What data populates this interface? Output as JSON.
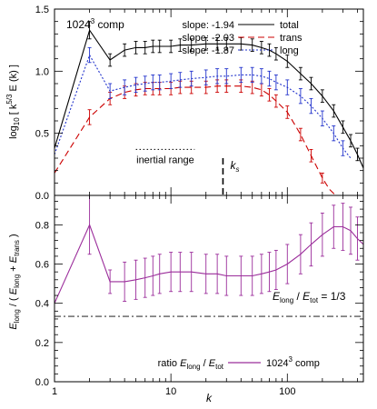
{
  "chart_data": [
    {
      "type": "line",
      "panel": "top",
      "x_scale": "log",
      "xlim": [
        1,
        450
      ],
      "ylim": [
        0.0,
        1.5
      ],
      "ylabel": "log10 [ k^5/3 E(k) ]",
      "yticks": [
        0.0,
        0.5,
        1.0,
        1.5
      ],
      "ytick_labels": [
        "0.0",
        "0.5",
        "1.0",
        "1.5"
      ],
      "grid": false,
      "legend_position": "top-right",
      "annotations": {
        "title_text": "1024",
        "title_sup": "3",
        "title_suffix": " comp",
        "inertial_range_label": "inertial range",
        "inertial_range_x": [
          5,
          16
        ],
        "inertial_range_y": 0.37,
        "ks_label": "k",
        "ks_sub": "s",
        "ks_x": 28,
        "ks_y_range": [
          0.0,
          0.3
        ]
      },
      "series": [
        {
          "name": "total",
          "slope_label": "slope: -1.94",
          "color": "#000000",
          "dash": "solid",
          "x": [
            1,
            2,
            3,
            4,
            5,
            6,
            7,
            8,
            10,
            12,
            15,
            20,
            25,
            30,
            40,
            50,
            60,
            70,
            80,
            100,
            130,
            160,
            200,
            250,
            300,
            350,
            400,
            450
          ],
          "y": [
            0.38,
            1.33,
            1.09,
            1.17,
            1.19,
            1.19,
            1.2,
            1.2,
            1.2,
            1.21,
            1.21,
            1.22,
            1.22,
            1.22,
            1.22,
            1.21,
            1.19,
            1.17,
            1.14,
            1.08,
            0.98,
            0.9,
            0.8,
            0.68,
            0.55,
            0.44,
            0.33,
            0.22
          ],
          "err": [
            0.0,
            0.07,
            0.05,
            0.05,
            0.05,
            0.05,
            0.05,
            0.05,
            0.05,
            0.05,
            0.05,
            0.05,
            0.05,
            0.05,
            0.05,
            0.05,
            0.05,
            0.05,
            0.05,
            0.05,
            0.05,
            0.05,
            0.05,
            0.05,
            0.05,
            0.05,
            0.05,
            0.0
          ]
        },
        {
          "name": "trans",
          "slope_label": "slope: -2.03",
          "color": "#cc0000",
          "dash": "long-dash",
          "x": [
            1,
            2,
            3,
            4,
            5,
            6,
            7,
            8,
            10,
            12,
            15,
            20,
            25,
            30,
            40,
            50,
            60,
            70,
            80,
            100,
            130,
            160,
            200,
            230,
            260
          ],
          "y": [
            0.18,
            0.63,
            0.78,
            0.83,
            0.85,
            0.86,
            0.86,
            0.86,
            0.86,
            0.87,
            0.87,
            0.87,
            0.88,
            0.88,
            0.88,
            0.87,
            0.85,
            0.81,
            0.76,
            0.67,
            0.49,
            0.32,
            0.14,
            0.05,
            0.0
          ],
          "err": [
            0.0,
            0.06,
            0.05,
            0.05,
            0.05,
            0.05,
            0.05,
            0.05,
            0.05,
            0.05,
            0.05,
            0.05,
            0.05,
            0.05,
            0.05,
            0.05,
            0.05,
            0.05,
            0.05,
            0.05,
            0.05,
            0.05,
            0.04,
            0.0,
            0.0
          ]
        },
        {
          "name": "long",
          "slope_label": "slope: -1.87",
          "color": "#2233cc",
          "dash": "dotted",
          "x": [
            1,
            2,
            3,
            4,
            5,
            6,
            7,
            8,
            10,
            12,
            15,
            20,
            25,
            30,
            40,
            50,
            60,
            70,
            80,
            100,
            130,
            160,
            200,
            250,
            300,
            350
          ],
          "y": [
            0.33,
            1.13,
            0.84,
            0.87,
            0.89,
            0.9,
            0.91,
            0.91,
            0.92,
            0.93,
            0.94,
            0.95,
            0.96,
            0.96,
            0.97,
            0.97,
            0.96,
            0.94,
            0.91,
            0.87,
            0.8,
            0.72,
            0.62,
            0.5,
            0.38,
            0.3
          ],
          "err": [
            0.0,
            0.06,
            0.06,
            0.06,
            0.06,
            0.06,
            0.06,
            0.06,
            0.06,
            0.06,
            0.06,
            0.06,
            0.06,
            0.06,
            0.06,
            0.06,
            0.06,
            0.06,
            0.06,
            0.06,
            0.06,
            0.06,
            0.06,
            0.06,
            0.06,
            0.0
          ]
        }
      ]
    },
    {
      "type": "line",
      "panel": "bottom",
      "x_scale": "log",
      "xlim": [
        1,
        450
      ],
      "ylim": [
        0.0,
        0.95
      ],
      "xlabel": "k",
      "xticks": [
        1,
        10,
        100
      ],
      "xtick_labels": [
        "1",
        "10",
        "100"
      ],
      "yticks": [
        0.0,
        0.2,
        0.4,
        0.6,
        0.8
      ],
      "ytick_labels": [
        "0.0",
        "0.2",
        "0.4",
        "0.6",
        "0.8"
      ],
      "ylabel": "E_long / ( E_long + E_trans )",
      "grid": false,
      "legend_position": "bottom-right",
      "reference_line": {
        "y": 0.3333,
        "label_text": "E_long / E_tot = 1/3"
      },
      "legend": {
        "prefix": "ratio E_long / E_tot",
        "entry": "1024³ comp"
      },
      "series": [
        {
          "name": "1024³ comp",
          "color": "#9b2d9b",
          "x": [
            1,
            2,
            3,
            4,
            5,
            6,
            7,
            8,
            10,
            12,
            15,
            20,
            25,
            30,
            40,
            50,
            60,
            70,
            80,
            100,
            130,
            160,
            200,
            250,
            300,
            350,
            400,
            450
          ],
          "y": [
            0.4,
            0.8,
            0.51,
            0.51,
            0.52,
            0.53,
            0.54,
            0.55,
            0.56,
            0.56,
            0.56,
            0.55,
            0.55,
            0.54,
            0.54,
            0.54,
            0.55,
            0.56,
            0.57,
            0.6,
            0.65,
            0.7,
            0.75,
            0.79,
            0.79,
            0.77,
            0.73,
            0.7
          ],
          "err": [
            0.0,
            0.15,
            0.06,
            0.1,
            0.1,
            0.1,
            0.1,
            0.1,
            0.1,
            0.1,
            0.1,
            0.1,
            0.1,
            0.1,
            0.1,
            0.1,
            0.1,
            0.1,
            0.1,
            0.1,
            0.1,
            0.11,
            0.11,
            0.11,
            0.12,
            0.12,
            0.11,
            0.0
          ]
        }
      ]
    }
  ]
}
